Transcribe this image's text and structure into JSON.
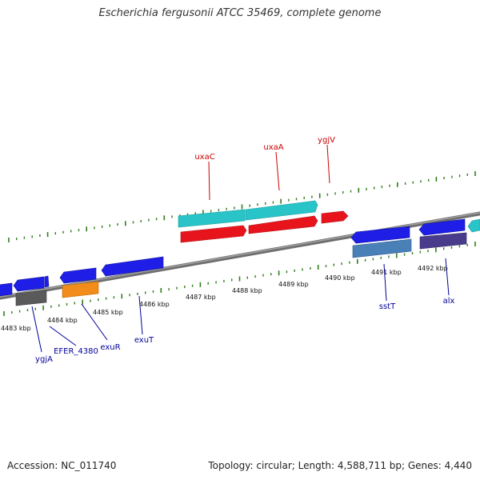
{
  "title": "Escherichia fergusonii ATCC 35469, complete genome",
  "footer": {
    "accession": "Accession: NC_011740",
    "topology": "Topology: circular; Length: 4,588,711 bp; Genes: 4,440"
  },
  "colors": {
    "backbone": "#808080",
    "tick": "#2e7d1a",
    "forward_label": "#cc0000",
    "reverse_label": "#000099",
    "cyan": "#29c4c8",
    "red": "#e8141c",
    "blue": "#1e1ee6",
    "gray": "#5a5a5a",
    "orange": "#f28c1a",
    "steel": "#4a80b8",
    "purple": "#4a3c8c"
  },
  "axis": {
    "unit": "kbp",
    "labels": [
      "4483 kbp",
      "4484 kbp",
      "4485 kbp",
      "4486 kbp",
      "4487 kbp",
      "4488 kbp",
      "4489 kbp",
      "4490 kbp",
      "4491 kbp",
      "4492 kbp"
    ]
  },
  "genes": {
    "forward": [
      {
        "name": "uxaC",
        "color": "cyan"
      },
      {
        "name": "uxaA",
        "color": "cyan"
      },
      {
        "name": "ygjV",
        "color": "red"
      }
    ],
    "reverse": [
      {
        "name": "ygjA"
      },
      {
        "name": "EFER_4380"
      },
      {
        "name": "exuR"
      },
      {
        "name": "exuT"
      },
      {
        "name": "sstT"
      },
      {
        "name": "alx"
      }
    ]
  }
}
